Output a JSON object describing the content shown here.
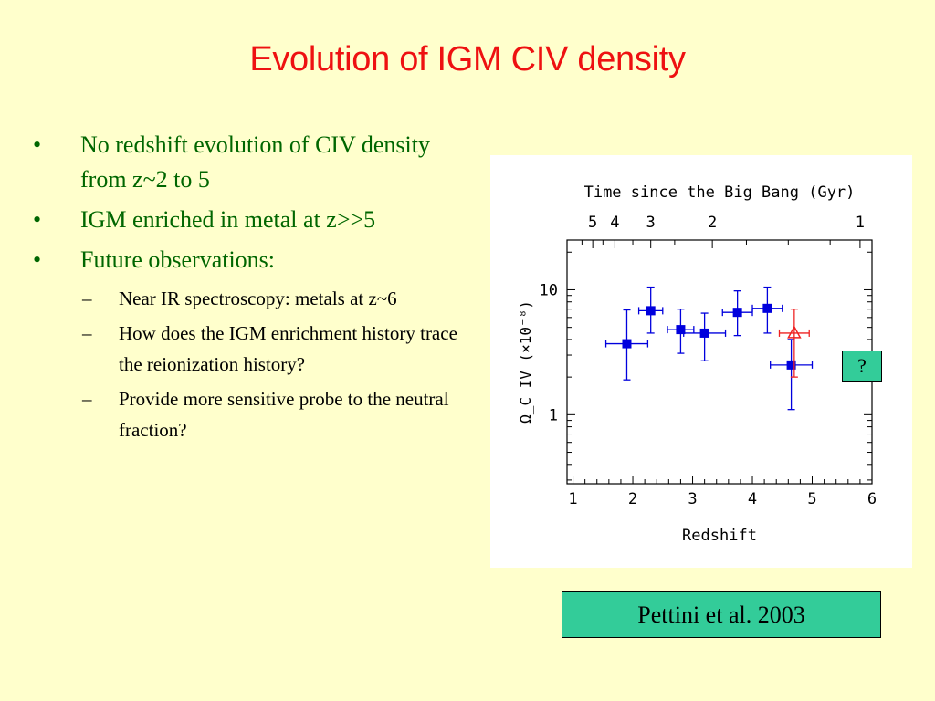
{
  "slide": {
    "title": "Evolution of IGM CIV density",
    "bullets": [
      {
        "mark": "•",
        "text": "No redshift evolution of CIV density from z~2 to 5"
      },
      {
        "mark": "•",
        "text": "IGM enriched in metal at z>>5"
      },
      {
        "mark": "•",
        "text": "Future observations:"
      }
    ],
    "sub_bullets": [
      {
        "mark": "–",
        "text": "Near IR spectroscopy: metals at z~6"
      },
      {
        "mark": "–",
        "text": "How does the IGM enrichment history trace the reionization history?"
      },
      {
        "mark": "–",
        "text": "Provide more sensitive probe to the neutral fraction?"
      }
    ],
    "question_label": "?",
    "citation": "Pettini et al. 2003"
  },
  "chart_data": {
    "type": "scatter",
    "title": "",
    "top_axis_label": "Time since the Big Bang (Gyr)",
    "top_ticks": [
      {
        "label": "5",
        "z": 1.33
      },
      {
        "label": "4",
        "z": 1.7
      },
      {
        "label": "3",
        "z": 2.3
      },
      {
        "label": "2",
        "z": 3.33
      },
      {
        "label": "1",
        "z": 5.8
      }
    ],
    "xlabel": "Redshift",
    "ylabel": "Ω_C IV  (×10⁻⁸)",
    "xlim": [
      0.9,
      6.0
    ],
    "ylim": [
      0.28,
      25
    ],
    "yscale": "log",
    "x_ticks": [
      1,
      2,
      3,
      4,
      5,
      6
    ],
    "y_ticks": [
      {
        "value": 1,
        "label": "1"
      },
      {
        "value": 10,
        "label": "10"
      }
    ],
    "grid": false,
    "series": [
      {
        "marker": "square",
        "color": "#0000dd",
        "points": [
          {
            "x": 1.9,
            "y": 3.7,
            "xerr": [
              0.35,
              0.35
            ],
            "yerr": [
              1.9,
              6.9
            ]
          },
          {
            "x": 2.3,
            "y": 6.8,
            "xerr": [
              0.2,
              0.2
            ],
            "yerr": [
              4.5,
              10.5
            ]
          },
          {
            "x": 2.8,
            "y": 4.8,
            "xerr": [
              0.22,
              0.22
            ],
            "yerr": [
              3.1,
              7.0
            ]
          },
          {
            "x": 3.2,
            "y": 4.5,
            "xerr": [
              0.35,
              0.35
            ],
            "yerr": [
              2.7,
              6.5
            ]
          },
          {
            "x": 3.75,
            "y": 6.6,
            "xerr": [
              0.25,
              0.25
            ],
            "yerr": [
              4.3,
              9.8
            ]
          },
          {
            "x": 4.25,
            "y": 7.1,
            "xerr": [
              0.25,
              0.25
            ],
            "yerr": [
              4.5,
              10.5
            ]
          },
          {
            "x": 4.65,
            "y": 2.5,
            "xerr": [
              0.35,
              0.35
            ],
            "yerr": [
              1.1,
              4.0
            ]
          }
        ]
      },
      {
        "marker": "triangle-open",
        "color": "#ee2222",
        "points": [
          {
            "x": 4.7,
            "y": 4.5,
            "xerr": [
              0.25,
              0.25
            ],
            "yerr": [
              2.0,
              7.0
            ]
          }
        ]
      }
    ]
  }
}
